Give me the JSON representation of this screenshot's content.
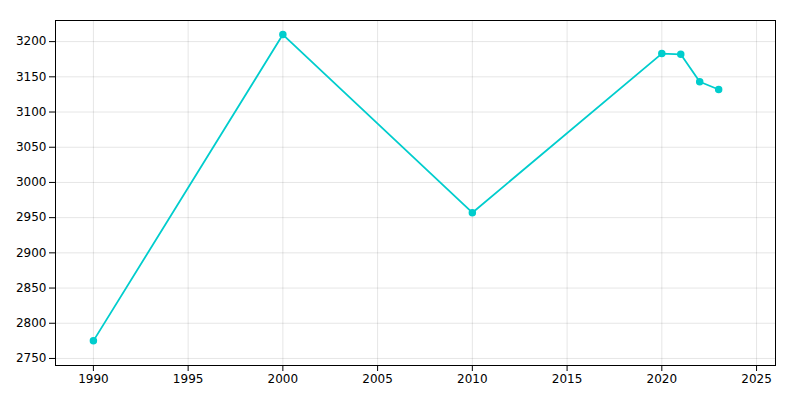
{
  "chart_data": {
    "type": "line",
    "x": [
      1990,
      2000,
      2010,
      2020,
      2021,
      2022,
      2023
    ],
    "values": [
      2775,
      3210,
      2957,
      3183,
      3182,
      3143,
      3132
    ],
    "color": "#00CDCD",
    "marker": "circle",
    "xlim": [
      1988,
      2026
    ],
    "ylim": [
      2740,
      3230
    ],
    "xticks": [
      1990,
      1995,
      2000,
      2005,
      2010,
      2015,
      2020,
      2025
    ],
    "yticks": [
      2750,
      2800,
      2850,
      2900,
      2950,
      3000,
      3050,
      3100,
      3150,
      3200
    ],
    "grid": true
  }
}
